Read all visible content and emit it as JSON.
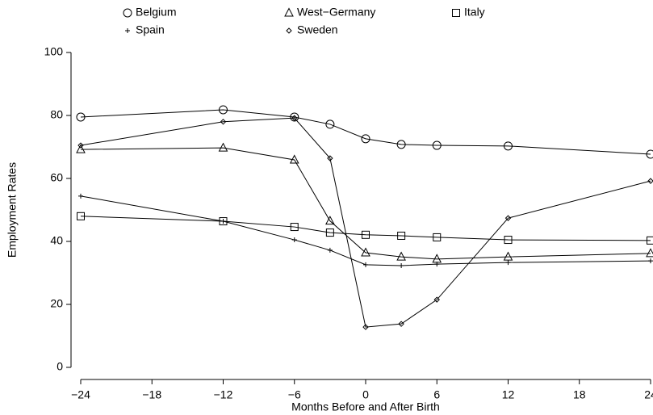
{
  "chart_data": {
    "type": "line",
    "x_label": "Months Before and After Birth",
    "y_label": "Employment Rates",
    "x": [
      -24,
      -12,
      -6,
      -3,
      0,
      3,
      6,
      12,
      24
    ],
    "xlim": [
      -24,
      24
    ],
    "xticks": [
      {
        "value": -24,
        "label": "−24"
      },
      {
        "value": -18,
        "label": "−18"
      },
      {
        "value": -12,
        "label": "−12"
      },
      {
        "value": -6,
        "label": "−6"
      },
      0,
      6,
      12,
      18,
      24
    ],
    "ylim": [
      0,
      100
    ],
    "yticks": [
      0,
      20,
      40,
      60,
      80,
      100
    ],
    "grid": false,
    "legend": "top",
    "series": [
      {
        "name": "Belgium",
        "marker": "circle",
        "color": "#000000",
        "values": [
          79.5,
          81.8,
          79.5,
          77.2,
          72.6,
          70.8,
          70.5,
          70.3,
          67.7
        ]
      },
      {
        "name": "West−Germany",
        "marker": "triangle",
        "color": "#000000",
        "values": [
          69.2,
          69.7,
          65.9,
          46.5,
          36.4,
          35.1,
          34.4,
          35.1,
          36.2
        ]
      },
      {
        "name": "Italy",
        "marker": "square",
        "color": "#000000",
        "values": [
          48,
          46.4,
          44.6,
          42.8,
          42.1,
          41.8,
          41.3,
          40.5,
          40.3
        ]
      },
      {
        "name": "Spain",
        "marker": "plus",
        "color": "#000000",
        "values": [
          54.4,
          46.4,
          40.5,
          37.2,
          32.6,
          32.3,
          32.8,
          33.3,
          33.8
        ]
      },
      {
        "name": "Sweden",
        "marker": "diamond",
        "color": "#000000",
        "values": [
          70.5,
          78,
          79.2,
          66.4,
          12.8,
          13.8,
          21.5,
          47.4,
          59.2
        ]
      }
    ]
  }
}
